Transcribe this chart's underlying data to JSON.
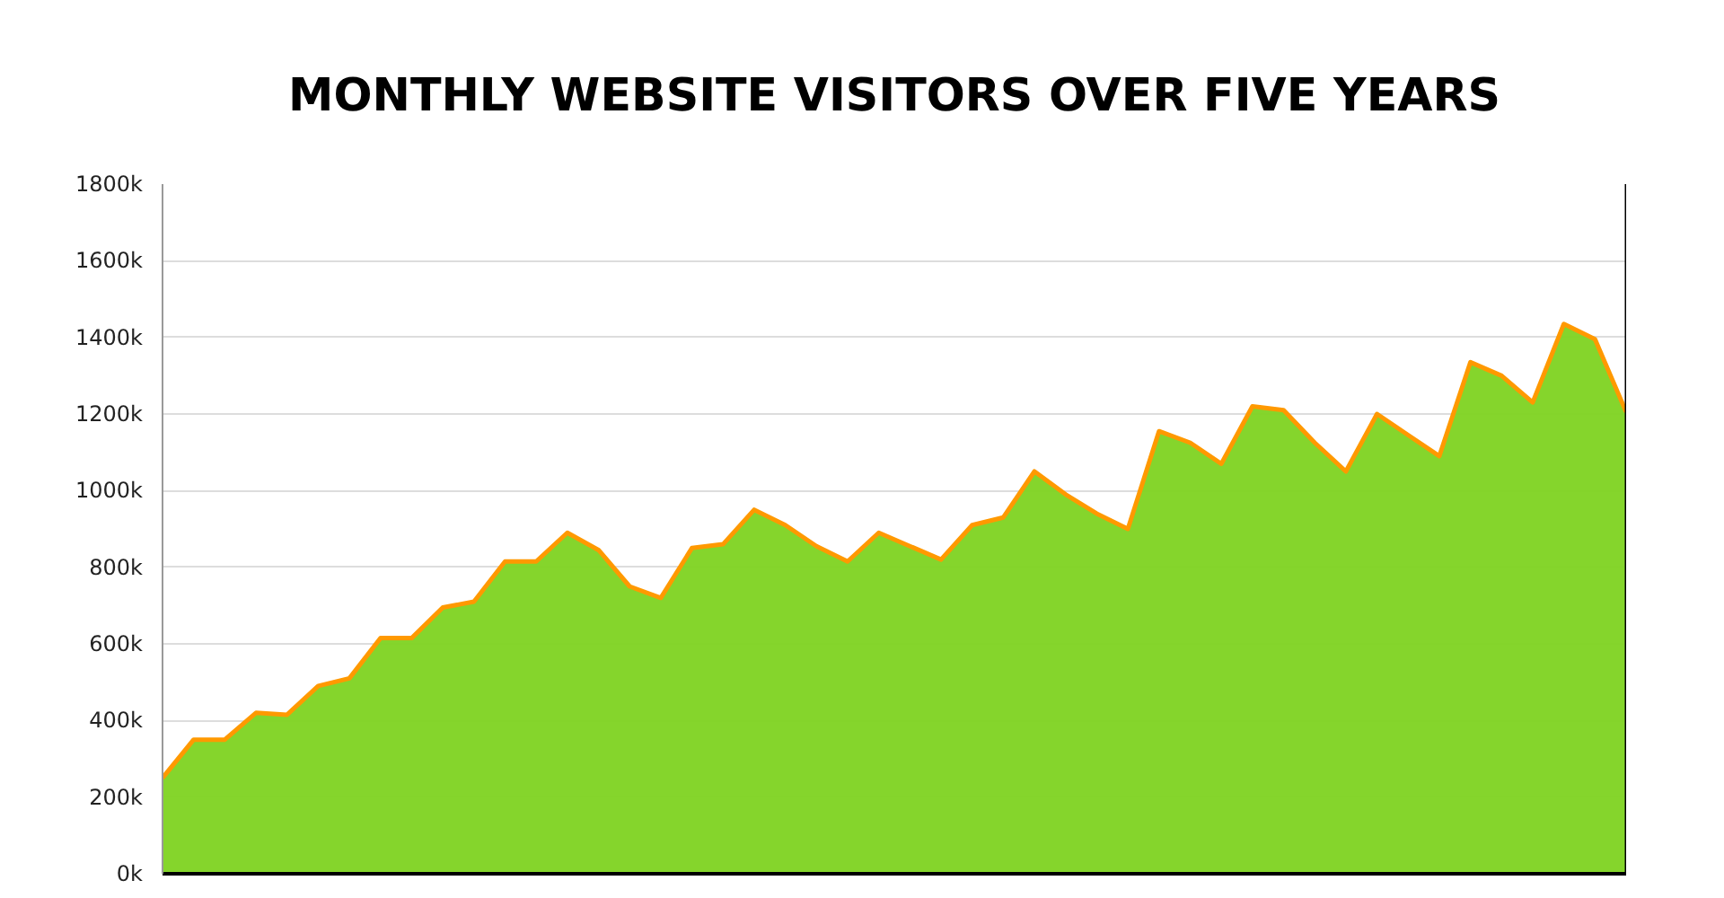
{
  "chart_data": {
    "type": "area",
    "title": "MONTHLY WEBSITE VISITORS OVER FIVE YEARS",
    "categories": [
      null,
      null,
      null,
      null,
      null,
      null,
      null,
      null,
      null,
      null,
      null,
      null,
      null,
      null,
      null,
      null,
      null,
      null,
      null,
      null,
      null,
      null,
      null,
      null,
      null,
      null,
      null,
      null,
      null,
      null,
      null,
      null,
      null,
      null,
      null,
      null,
      null,
      null,
      null,
      null,
      null,
      null,
      null,
      null,
      null,
      null,
      null,
      null
    ],
    "series": [
      {
        "color": "#7ed321",
        "values": [
          250,
          350,
          350,
          420,
          415,
          490,
          510,
          615,
          615,
          695,
          710,
          815,
          815,
          890,
          845,
          750,
          720,
          850,
          860,
          950,
          910,
          855,
          815,
          890,
          855,
          820,
          910,
          930,
          1050,
          990,
          940,
          900,
          1155,
          1125,
          1070,
          1220,
          1210,
          1125,
          1050,
          1200,
          1145,
          1090,
          1335,
          1300,
          1230,
          1435,
          1395,
          1205
        ]
      }
    ],
    "ylim": [
      0,
      1800
    ],
    "yticks": [
      {
        "value": 0,
        "label": "0k"
      },
      {
        "value": 200,
        "label": "200k"
      },
      {
        "value": 400,
        "label": "400k"
      },
      {
        "value": 600,
        "label": "600k"
      },
      {
        "value": 800,
        "label": "800k"
      },
      {
        "value": 1000,
        "label": "1000k"
      },
      {
        "value": 1200,
        "label": "1200k"
      },
      {
        "value": 1400,
        "label": "1400k"
      },
      {
        "value": 1600,
        "label": "1600k"
      },
      {
        "value": 1800,
        "label": "1800k"
      }
    ],
    "grid": "y",
    "tick_labels": "y"
  }
}
